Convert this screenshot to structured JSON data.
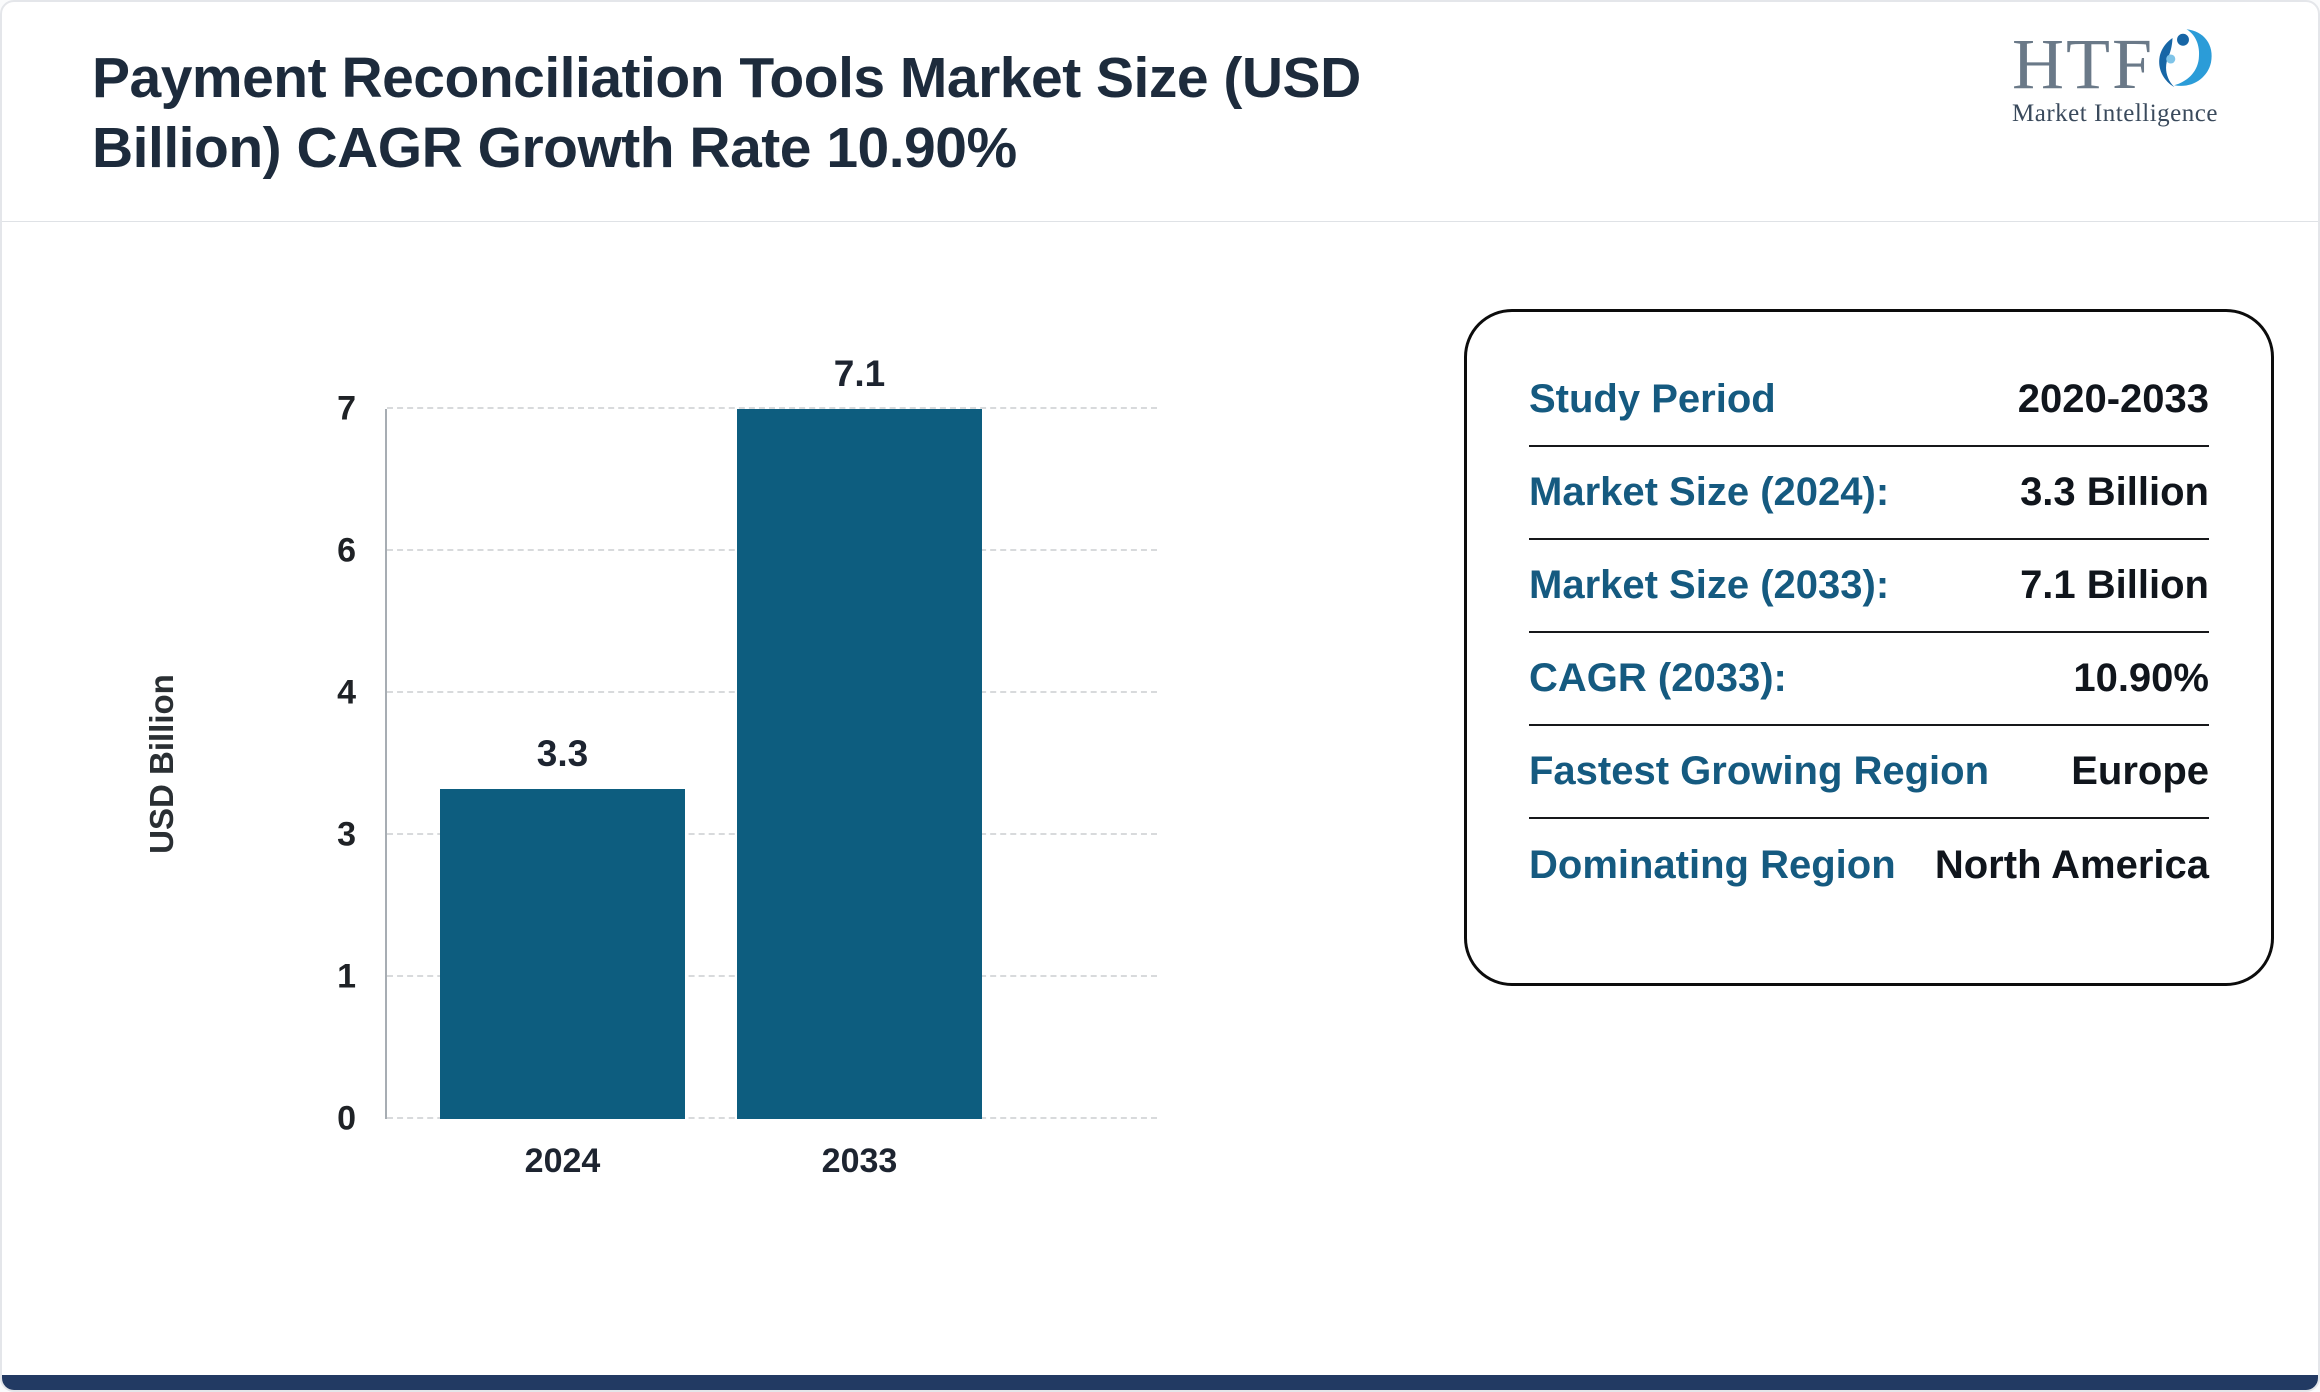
{
  "header": {
    "title": "Payment Reconciliation Tools Market Size (USD Billion) CAGR Growth Rate 10.90%",
    "logo": {
      "text": "HTF",
      "subtext": "Market Intelligence"
    }
  },
  "chart_data": {
    "type": "bar",
    "categories": [
      "2024",
      "2033"
    ],
    "values": [
      3.3,
      7.1
    ],
    "data_labels": [
      "3.3",
      "7.1"
    ],
    "title": "Payment Reconciliation Tools Market Size (USD Billion) CAGR Growth Rate 10.90%",
    "xlabel": "",
    "ylabel": "USD Billion",
    "ylim": [
      0,
      7.1
    ],
    "ytick_labels": [
      "0",
      "1",
      "3",
      "4",
      "6",
      "7"
    ],
    "grid": "dashed horizontal",
    "legend": "none",
    "bar_color": "#0d5d7f"
  },
  "info_card": {
    "rows": [
      {
        "label": "Study Period",
        "value": "2020-2033"
      },
      {
        "label": "Market Size (2024):",
        "value": "3.3 Billion"
      },
      {
        "label": "Market Size (2033):",
        "value": "7.1 Billion"
      },
      {
        "label": "CAGR (2033):",
        "value": "10.90%"
      },
      {
        "label": "Fastest Growing Region",
        "value": "Europe"
      },
      {
        "label": "Dominating Region",
        "value": "North America"
      }
    ]
  },
  "colors": {
    "bar": "#0d5d7f",
    "card_label": "#155a80",
    "title_text": "#1d2b3c",
    "footer_bar": "#223a63"
  }
}
